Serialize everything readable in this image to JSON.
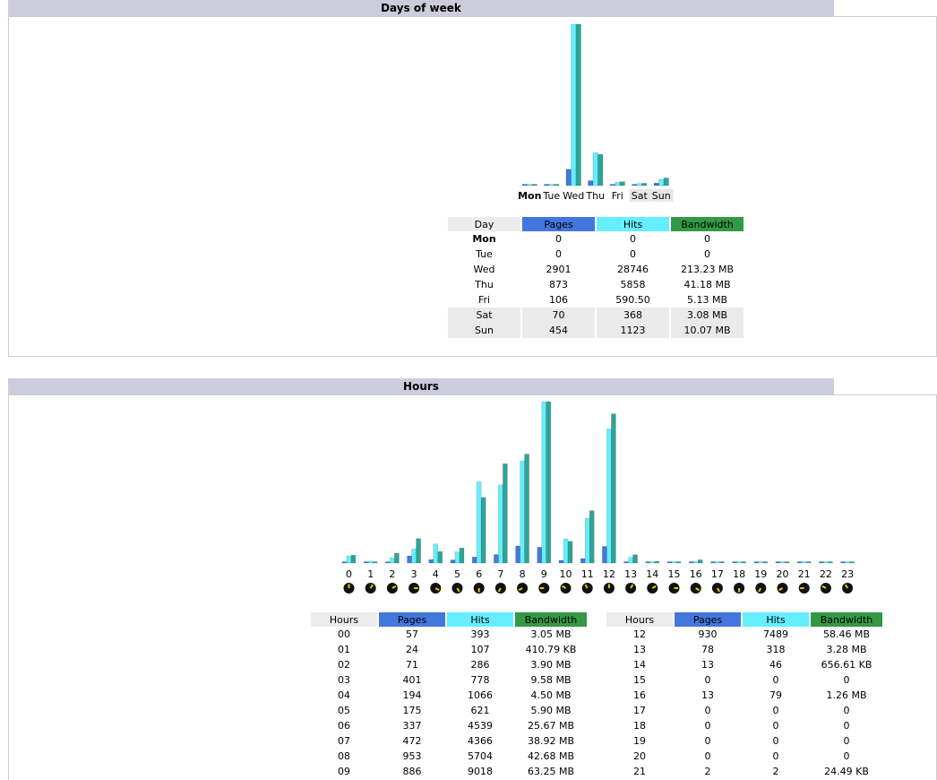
{
  "colors": {
    "pages": "#4477dd",
    "hits": "#66eeff",
    "bandwidth": "#2ea495",
    "header": "#ccccdd"
  },
  "days_section": {
    "title": "Days of week",
    "columns": [
      "Day",
      "Pages",
      "Hits",
      "Bandwidth"
    ],
    "rows": [
      {
        "day": "Mon",
        "pages": "0",
        "hits": "0",
        "bandwidth": "0"
      },
      {
        "day": "Tue",
        "pages": "0",
        "hits": "0",
        "bandwidth": "0"
      },
      {
        "day": "Wed",
        "pages": "2901",
        "hits": "28746",
        "bandwidth": "213.23 MB"
      },
      {
        "day": "Thu",
        "pages": "873",
        "hits": "5858",
        "bandwidth": "41.18 MB"
      },
      {
        "day": "Fri",
        "pages": "106",
        "hits": "590.50",
        "bandwidth": "5.13 MB"
      },
      {
        "day": "Sat",
        "pages": "70",
        "hits": "368",
        "bandwidth": "3.08 MB"
      },
      {
        "day": "Sun",
        "pages": "454",
        "hits": "1123",
        "bandwidth": "10.07 MB"
      }
    ]
  },
  "hours_section": {
    "title": "Hours",
    "columns": [
      "Hours",
      "Pages",
      "Hits",
      "Bandwidth"
    ],
    "left_rows": [
      {
        "hour": "00",
        "pages": "57",
        "hits": "393",
        "bandwidth": "3.05 MB"
      },
      {
        "hour": "01",
        "pages": "24",
        "hits": "107",
        "bandwidth": "410.79 KB"
      },
      {
        "hour": "02",
        "pages": "71",
        "hits": "286",
        "bandwidth": "3.90 MB"
      },
      {
        "hour": "03",
        "pages": "401",
        "hits": "778",
        "bandwidth": "9.58 MB"
      },
      {
        "hour": "04",
        "pages": "194",
        "hits": "1066",
        "bandwidth": "4.50 MB"
      },
      {
        "hour": "05",
        "pages": "175",
        "hits": "621",
        "bandwidth": "5.90 MB"
      },
      {
        "hour": "06",
        "pages": "337",
        "hits": "4539",
        "bandwidth": "25.67 MB"
      },
      {
        "hour": "07",
        "pages": "472",
        "hits": "4366",
        "bandwidth": "38.92 MB"
      },
      {
        "hour": "08",
        "pages": "953",
        "hits": "5704",
        "bandwidth": "42.68 MB"
      },
      {
        "hour": "09",
        "pages": "886",
        "hits": "9018",
        "bandwidth": "63.25 MB"
      }
    ],
    "right_rows": [
      {
        "hour": "12",
        "pages": "930",
        "hits": "7489",
        "bandwidth": "58.46 MB"
      },
      {
        "hour": "13",
        "pages": "78",
        "hits": "318",
        "bandwidth": "3.28 MB"
      },
      {
        "hour": "14",
        "pages": "13",
        "hits": "46",
        "bandwidth": "656.61 KB"
      },
      {
        "hour": "15",
        "pages": "0",
        "hits": "0",
        "bandwidth": "0"
      },
      {
        "hour": "16",
        "pages": "13",
        "hits": "79",
        "bandwidth": "1.26 MB"
      },
      {
        "hour": "17",
        "pages": "0",
        "hits": "0",
        "bandwidth": "0"
      },
      {
        "hour": "18",
        "pages": "0",
        "hits": "0",
        "bandwidth": "0"
      },
      {
        "hour": "19",
        "pages": "0",
        "hits": "0",
        "bandwidth": "0"
      },
      {
        "hour": "20",
        "pages": "0",
        "hits": "0",
        "bandwidth": "0"
      },
      {
        "hour": "21",
        "pages": "2",
        "hits": "2",
        "bandwidth": "24.49 KB"
      }
    ]
  },
  "chart_data": [
    {
      "type": "bar",
      "categories": [
        "Mon",
        "Tue",
        "Wed",
        "Thu",
        "Fri",
        "Sat",
        "Sun"
      ],
      "series": [
        {
          "name": "Pages",
          "values": [
            0,
            0,
            2901,
            873,
            106,
            70,
            454
          ]
        },
        {
          "name": "Hits",
          "values": [
            0,
            0,
            28746,
            5858,
            590.5,
            368,
            1123
          ]
        },
        {
          "name": "Bandwidth",
          "values": [
            0,
            0,
            213.23,
            41.18,
            5.13,
            3.08,
            10.07
          ]
        }
      ],
      "title": "",
      "xlabel": "",
      "ylabel": ""
    },
    {
      "type": "bar",
      "categories": [
        "0",
        "1",
        "2",
        "3",
        "4",
        "5",
        "6",
        "7",
        "8",
        "9",
        "10",
        "11",
        "12",
        "13",
        "14",
        "15",
        "16",
        "17",
        "18",
        "19",
        "20",
        "21",
        "22",
        "23"
      ],
      "series": [
        {
          "name": "Pages",
          "values": [
            57,
            24,
            71,
            401,
            194,
            175,
            337,
            472,
            953,
            886,
            150,
            250,
            930,
            78,
            13,
            0,
            13,
            0,
            0,
            0,
            0,
            2,
            0,
            0
          ]
        },
        {
          "name": "Hits",
          "values": [
            393,
            107,
            286,
            778,
            1066,
            621,
            4539,
            4366,
            5704,
            9018,
            1350,
            2500,
            7489,
            318,
            46,
            0,
            79,
            0,
            0,
            0,
            0,
            2,
            0,
            0
          ]
        },
        {
          "name": "Bandwidth",
          "values": [
            3.05,
            0.4,
            3.9,
            9.58,
            4.5,
            5.9,
            25.67,
            38.92,
            42.68,
            63.25,
            8.5,
            20.5,
            58.46,
            3.28,
            0.64,
            0,
            1.26,
            0,
            0,
            0,
            0,
            0.02,
            0,
            0
          ]
        }
      ],
      "title": "",
      "xlabel": "",
      "ylabel": ""
    }
  ]
}
